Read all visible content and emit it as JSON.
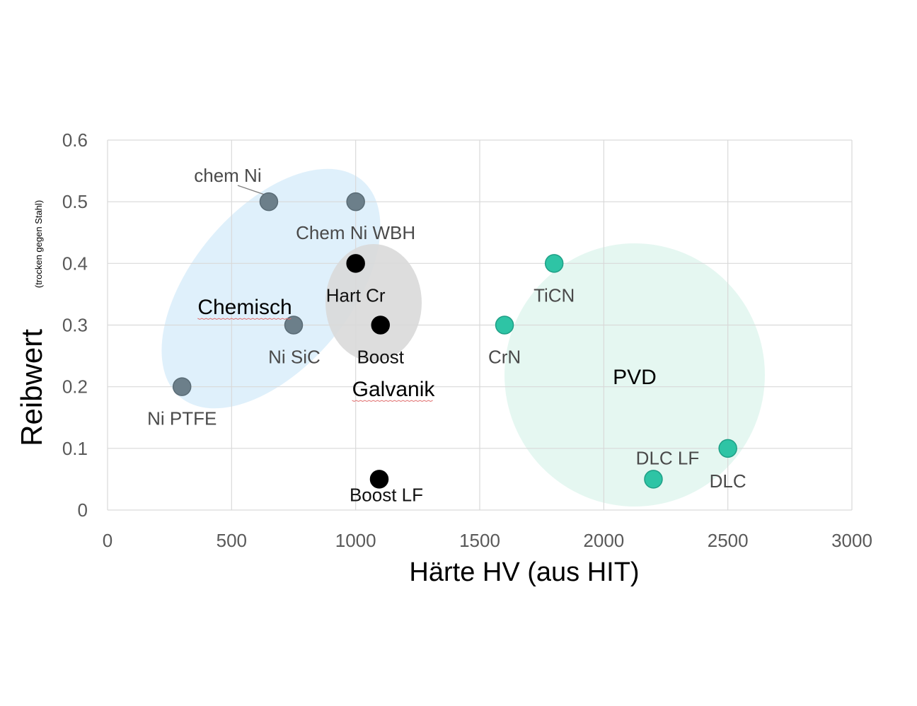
{
  "chart_data": {
    "type": "scatter",
    "xlabel": "Härte HV (aus HIT)",
    "ylabel": "Reibwert",
    "ylabel_sub": "(trocken gegen Stahl)",
    "xlim": [
      0,
      3000
    ],
    "ylim": [
      0,
      0.6
    ],
    "xticks": [
      0,
      500,
      1000,
      1500,
      2000,
      2500,
      3000
    ],
    "yticks": [
      0,
      0.1,
      0.2,
      0.3,
      0.4,
      0.5,
      0.6
    ],
    "grid": true,
    "points": [
      {
        "label": "chem Ni",
        "x": 650,
        "y": 0.5,
        "group": "Chemisch"
      },
      {
        "label": "Chem Ni WBH",
        "x": 1000,
        "y": 0.5,
        "group": "Chemisch"
      },
      {
        "label": "Ni SiC",
        "x": 750,
        "y": 0.3,
        "group": "Chemisch"
      },
      {
        "label": "Ni PTFE",
        "x": 300,
        "y": 0.2,
        "group": "Chemisch"
      },
      {
        "label": "Hart Cr",
        "x": 1000,
        "y": 0.4,
        "group": "Galvanik"
      },
      {
        "label": "Boost",
        "x": 1100,
        "y": 0.3,
        "group": "Galvanik"
      },
      {
        "label": "Boost LF",
        "x": 1095,
        "y": 0.05,
        "group": "Galvanik"
      },
      {
        "label": "TiCN",
        "x": 1800,
        "y": 0.4,
        "group": "PVD"
      },
      {
        "label": "CrN",
        "x": 1600,
        "y": 0.3,
        "group": "PVD"
      },
      {
        "label": "DLC LF",
        "x": 2200,
        "y": 0.05,
        "group": "PVD"
      },
      {
        "label": "DLC",
        "x": 2500,
        "y": 0.1,
        "group": "PVD"
      }
    ],
    "groups": [
      {
        "name": "Chemisch",
        "color": "#dbeefb",
        "point_color": "#6c7f8a"
      },
      {
        "name": "Galvanik",
        "color": "#d9d9d9",
        "point_color": "#000000"
      },
      {
        "name": "PVD",
        "color": "#e2f6f0",
        "point_color": "#2ec4a5"
      }
    ]
  }
}
